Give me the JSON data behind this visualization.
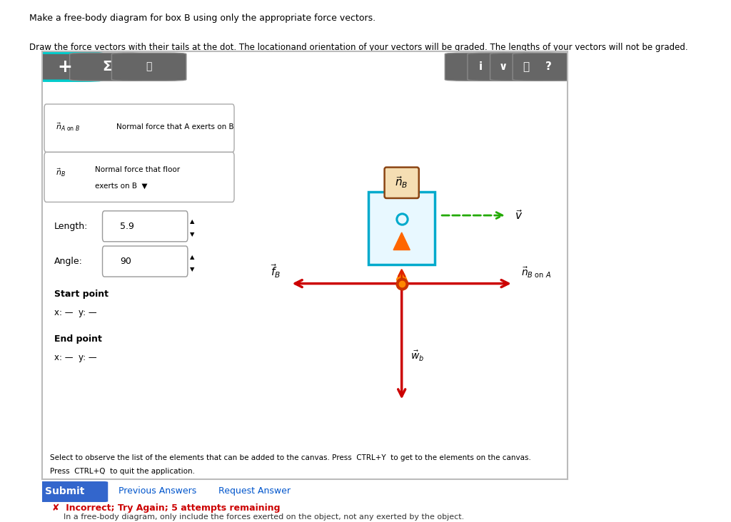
{
  "title_line1": "Make a free-body diagram for box B using only the appropriate force vectors.",
  "title_line2": "Draw the force vectors with their tails at the dot. The locationand orientation of your vectors will be graded. The lengths of your vectors will not be graded.",
  "bg_color": "#ffffff",
  "toolbar_bg": "#555555",
  "canvas_bg": "#ffffff",
  "sidebar_bg": "#cccccc",
  "feedback_text": "Incorrect; Try Again; 5 attempts remaining",
  "feedback_sub": "In a free-body diagram, only include the forces exerted on the object, not any exerted by the object.",
  "submit_color": "#3366cc",
  "link_color": "#0055cc",
  "arrow_red": "#cc0000",
  "arrow_orange": "#ff8800",
  "arrow_green": "#22aa00",
  "box_edge": "#00aacc",
  "box_face": "#e8f8ff",
  "label_edge": "#8B4513",
  "label_face": "#f5deb3"
}
